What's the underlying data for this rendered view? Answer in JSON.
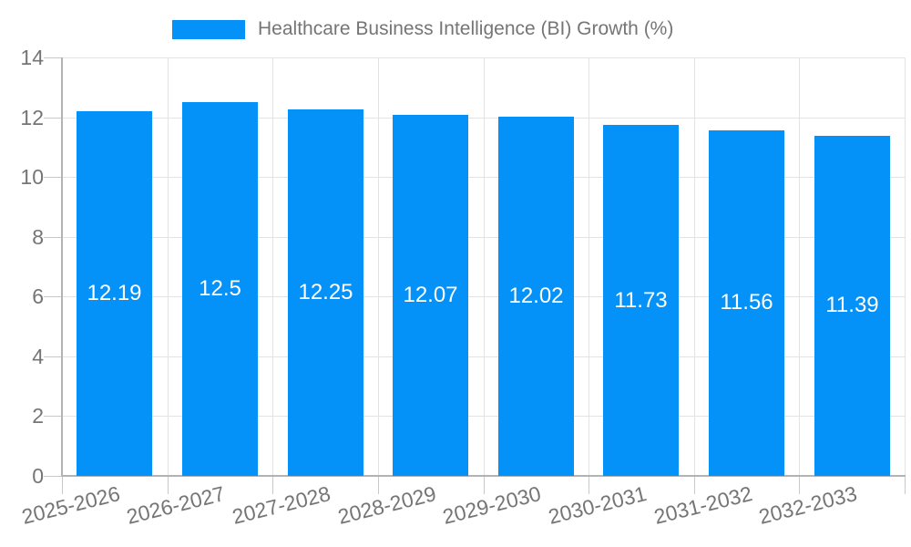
{
  "chart_data": {
    "type": "bar",
    "title": "Healthcare Business Intelligence (BI) Growth (%)",
    "categories": [
      "2025-2026",
      "2026-2027",
      "2027-2028",
      "2028-2029",
      "2029-2030",
      "2030-2031",
      "2031-2032",
      "2032-2033"
    ],
    "values": [
      12.19,
      12.5,
      12.25,
      12.07,
      12.02,
      11.73,
      11.56,
      11.39
    ],
    "value_labels": [
      "12.19",
      "12.5",
      "12.25",
      "12.07",
      "12.02",
      "11.73",
      "11.56",
      "11.39"
    ],
    "xlabel": "",
    "ylabel": "",
    "ylim": [
      0,
      14
    ],
    "yticks": [
      0,
      2,
      4,
      6,
      8,
      10,
      12,
      14
    ],
    "grid": true,
    "x_label_rotation_deg": -14,
    "legend": {
      "position": "top-center",
      "label": "Healthcare Business Intelligence (BI) Growth (%)"
    },
    "colors": {
      "bar": "#0491f8",
      "value_label": "#ffffff",
      "axis_text": "#757575",
      "legend_text": "#757575",
      "grid_line": "#e3e3e3",
      "axis_line": "#b3b3b3",
      "tick": "#c8c8c8",
      "background": "#ffffff"
    }
  }
}
